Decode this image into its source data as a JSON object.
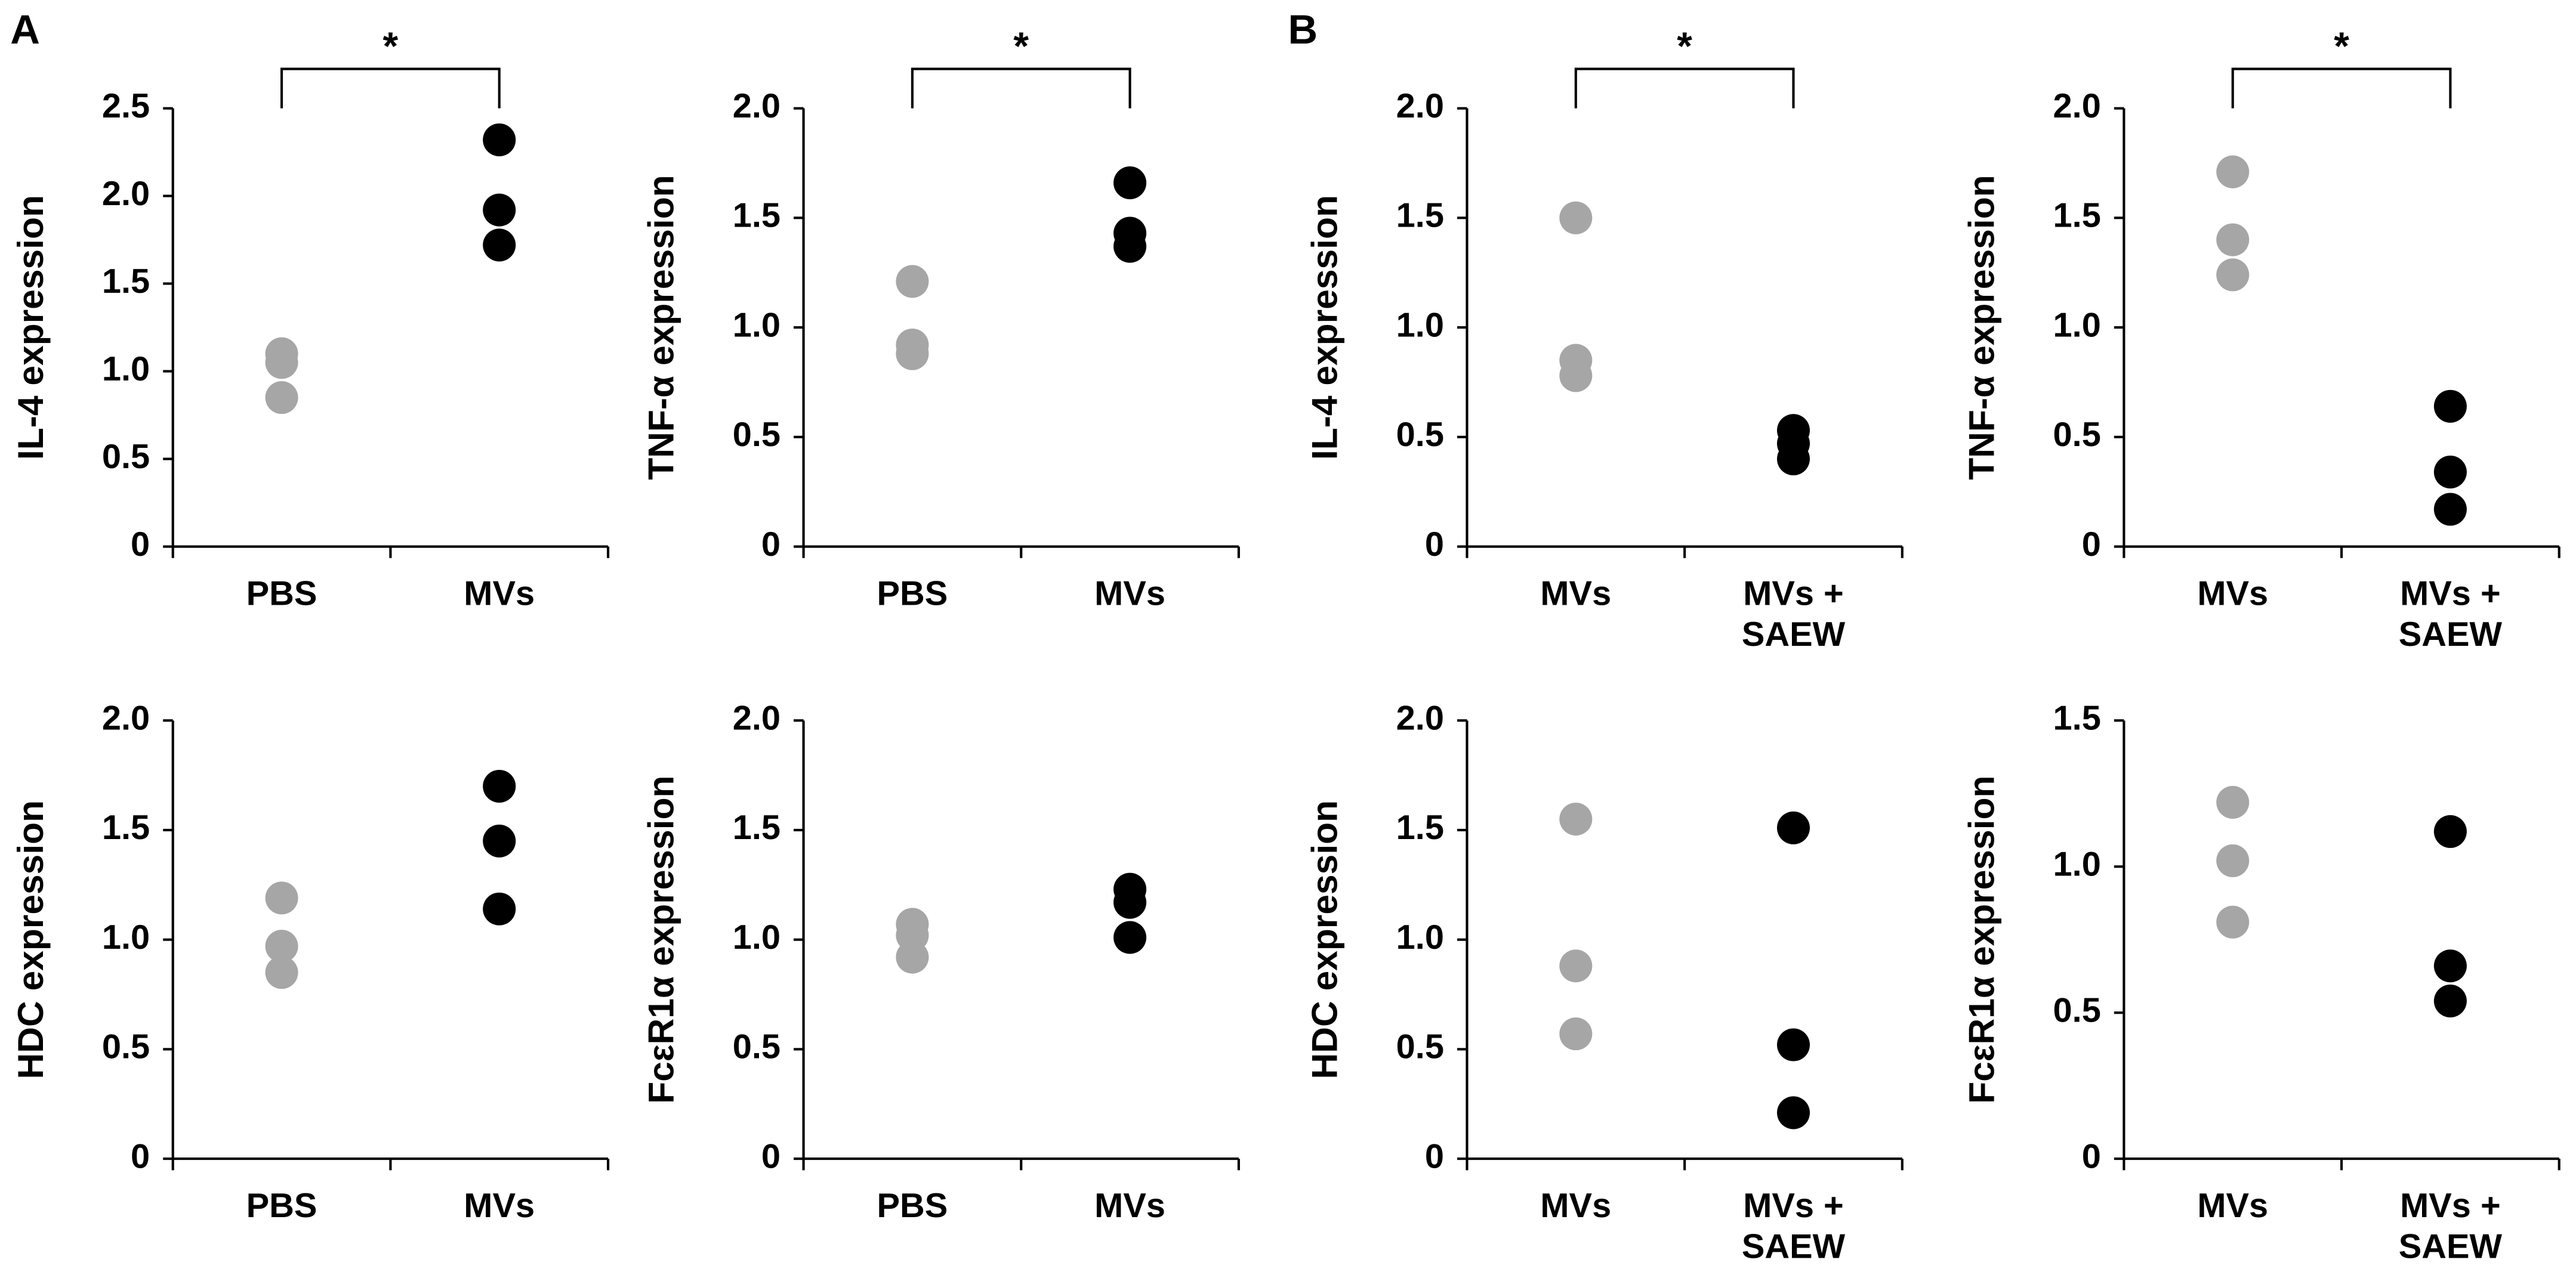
{
  "panels": [
    "A",
    "B"
  ],
  "chart_data": [
    {
      "type": "dot",
      "ylabel": "IL-4 expression",
      "categories": [
        [
          "PBS"
        ],
        [
          "MVs"
        ]
      ],
      "colors": [
        "#a6a6a6",
        "#000000"
      ],
      "values": [
        [
          1.1,
          1.05,
          0.85
        ],
        [
          2.32,
          1.92,
          1.72
        ]
      ],
      "ylim": [
        0,
        2.5
      ],
      "yticks": [
        0,
        0.5,
        {
          "value": 1,
          "label": "1.0"
        },
        1.5,
        {
          "value": 2,
          "label": "2.0"
        },
        2.5
      ],
      "significance": "*"
    },
    {
      "type": "dot",
      "ylabel": "TNF-α expression",
      "categories": [
        [
          "PBS"
        ],
        [
          "MVs"
        ]
      ],
      "colors": [
        "#a6a6a6",
        "#000000"
      ],
      "values": [
        [
          1.21,
          0.92,
          0.88
        ],
        [
          1.66,
          1.43,
          1.37
        ]
      ],
      "ylim": [
        0,
        2
      ],
      "yticks": [
        0,
        0.5,
        {
          "value": 1,
          "label": "1.0"
        },
        1.5,
        {
          "value": 2,
          "label": "2.0"
        }
      ],
      "significance": "*"
    },
    {
      "type": "dot",
      "ylabel": "IL-4 expression",
      "categories": [
        [
          "MVs"
        ],
        [
          "MVs +",
          "SAEW"
        ]
      ],
      "colors": [
        "#a6a6a6",
        "#000000"
      ],
      "values": [
        [
          1.5,
          0.85,
          0.78
        ],
        [
          0.53,
          0.47,
          0.4
        ]
      ],
      "ylim": [
        0,
        2
      ],
      "yticks": [
        0,
        0.5,
        {
          "value": 1,
          "label": "1.0"
        },
        1.5,
        {
          "value": 2,
          "label": "2.0"
        }
      ],
      "significance": "*"
    },
    {
      "type": "dot",
      "ylabel": "TNF-α expression",
      "categories": [
        [
          "MVs"
        ],
        [
          "MVs +",
          "SAEW"
        ]
      ],
      "colors": [
        "#a6a6a6",
        "#000000"
      ],
      "values": [
        [
          1.71,
          1.4,
          1.24
        ],
        [
          0.64,
          0.34,
          0.17
        ]
      ],
      "ylim": [
        0,
        2
      ],
      "yticks": [
        0,
        0.5,
        {
          "value": 1,
          "label": "1.0"
        },
        1.5,
        {
          "value": 2,
          "label": "2.0"
        }
      ],
      "significance": "*"
    },
    {
      "type": "dot",
      "ylabel": "HDC expression",
      "categories": [
        [
          "PBS"
        ],
        [
          "MVs"
        ]
      ],
      "colors": [
        "#a6a6a6",
        "#000000"
      ],
      "values": [
        [
          1.19,
          0.97,
          0.85
        ],
        [
          1.7,
          1.45,
          1.14
        ]
      ],
      "ylim": [
        0,
        2
      ],
      "yticks": [
        0,
        0.5,
        {
          "value": 1,
          "label": "1.0"
        },
        1.5,
        {
          "value": 2,
          "label": "2.0"
        }
      ]
    },
    {
      "type": "dot",
      "ylabel": "FcεR1α expression",
      "categories": [
        [
          "PBS"
        ],
        [
          "MVs"
        ]
      ],
      "colors": [
        "#a6a6a6",
        "#000000"
      ],
      "values": [
        [
          1.07,
          1.02,
          0.92
        ],
        [
          1.23,
          1.17,
          1.01
        ]
      ],
      "ylim": [
        0,
        2
      ],
      "yticks": [
        0,
        0.5,
        {
          "value": 1,
          "label": "1.0"
        },
        1.5,
        {
          "value": 2,
          "label": "2.0"
        }
      ]
    },
    {
      "type": "dot",
      "ylabel": "HDC expression",
      "categories": [
        [
          "MVs"
        ],
        [
          "MVs +",
          "SAEW"
        ]
      ],
      "colors": [
        "#a6a6a6",
        "#000000"
      ],
      "values": [
        [
          1.55,
          0.88,
          0.57
        ],
        [
          1.51,
          0.52,
          0.21
        ]
      ],
      "ylim": [
        0,
        2
      ],
      "yticks": [
        0,
        0.5,
        {
          "value": 1,
          "label": "1.0"
        },
        1.5,
        {
          "value": 2,
          "label": "2.0"
        }
      ]
    },
    {
      "type": "dot",
      "ylabel": "FcεR1α expression",
      "categories": [
        [
          "MVs"
        ],
        [
          "MVs +",
          "SAEW"
        ]
      ],
      "colors": [
        "#a6a6a6",
        "#000000"
      ],
      "values": [
        [
          1.22,
          1.02,
          0.81
        ],
        [
          1.12,
          0.66,
          0.54
        ]
      ],
      "ylim": [
        0,
        1.5
      ],
      "yticks": [
        0,
        0.5,
        {
          "value": 1,
          "label": "1.0"
        },
        1.5
      ]
    }
  ]
}
